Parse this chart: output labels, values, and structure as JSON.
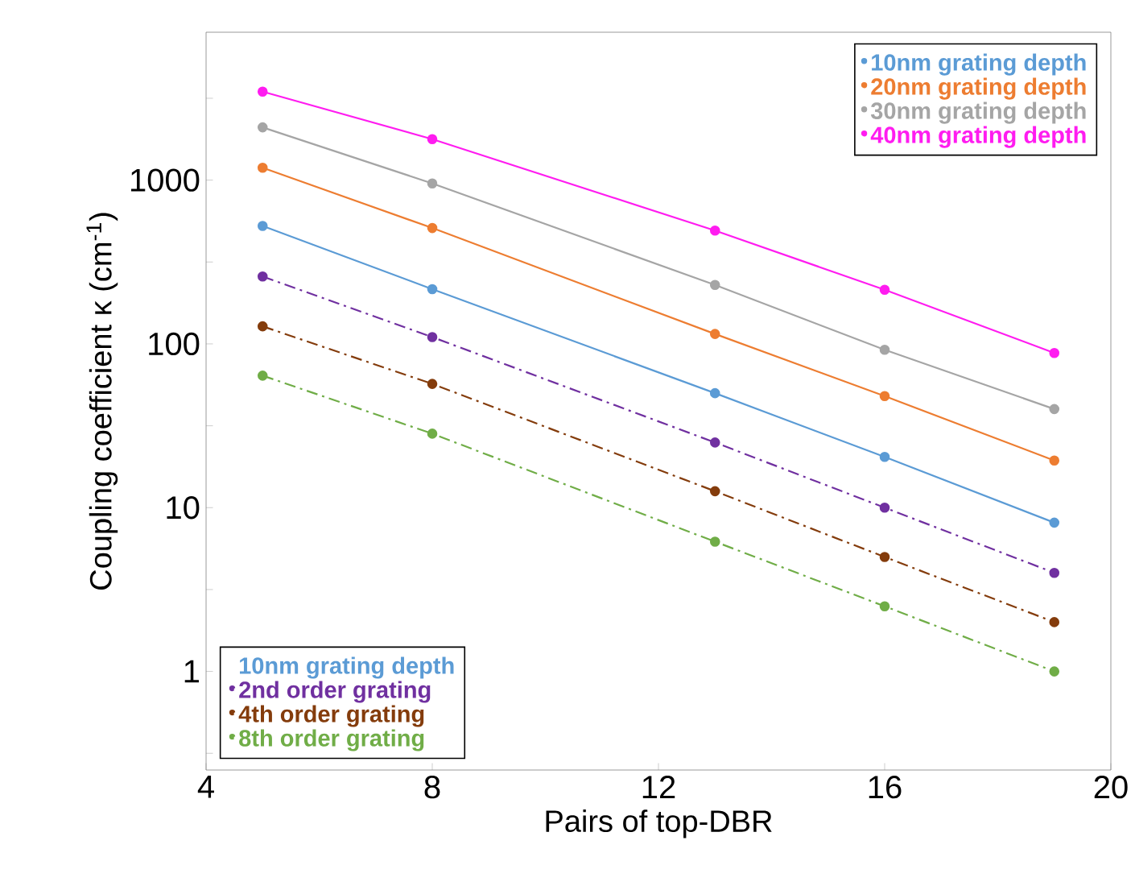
{
  "chart_data": {
    "type": "line",
    "xlabel": "Pairs of top-DBR",
    "ylabel": "Coupling coefficient κ (cm$^{-1}$)",
    "legend_title": "10nm grating depth",
    "x": [
      5,
      8,
      13,
      16,
      19
    ],
    "log": "y",
    "marker": "circle",
    "legend": "bottom left",
    "xlim": [
      4,
      20
    ],
    "xticks": [
      4,
      8,
      12,
      16,
      20
    ],
    "ylim": [
      0.25,
      8000
    ],
    "yticks": [
      {
        "value": 0.3162,
        "label": null
      },
      1,
      {
        "value": 3.162,
        "label": null
      },
      10,
      {
        "value": 31.62,
        "label": null
      },
      100,
      {
        "value": 316.2,
        "label": null
      },
      1000,
      {
        "value": 3162,
        "label": null
      }
    ],
    "series": [
      {
        "name": "10nm grating depth",
        "color": "#5b9bd5",
        "line_style": "solid",
        "values": [
          525,
          216,
          50,
          20.4,
          8.1
        ]
      },
      {
        "name": "20nm grating depth",
        "color": "#ed7d31",
        "line_style": "solid",
        "values": [
          1190,
          510,
          115,
          48,
          19.4
        ]
      },
      {
        "name": "30nm grating depth",
        "color": "#a5a5a5",
        "line_style": "solid",
        "values": [
          2100,
          955,
          229,
          92,
          40
        ]
      },
      {
        "name": "40nm grating depth",
        "color": "#ff1cf0",
        "line_style": "solid",
        "values": [
          3470,
          1780,
          492,
          214,
          88
        ]
      },
      {
        "name": "2nd order grating",
        "color": "#7030a0",
        "line_style": "dashdot",
        "values": [
          258,
          110,
          25,
          10,
          4
        ]
      },
      {
        "name": "4th order grating",
        "color": "#843c0c",
        "line_style": "dashdot",
        "values": [
          128,
          57,
          12.6,
          5,
          2
        ]
      },
      {
        "name": "8th order grating",
        "color": "#70ad47",
        "line_style": "dashdot",
        "values": [
          64,
          28.3,
          6.2,
          2.5,
          1
        ]
      }
    ]
  }
}
